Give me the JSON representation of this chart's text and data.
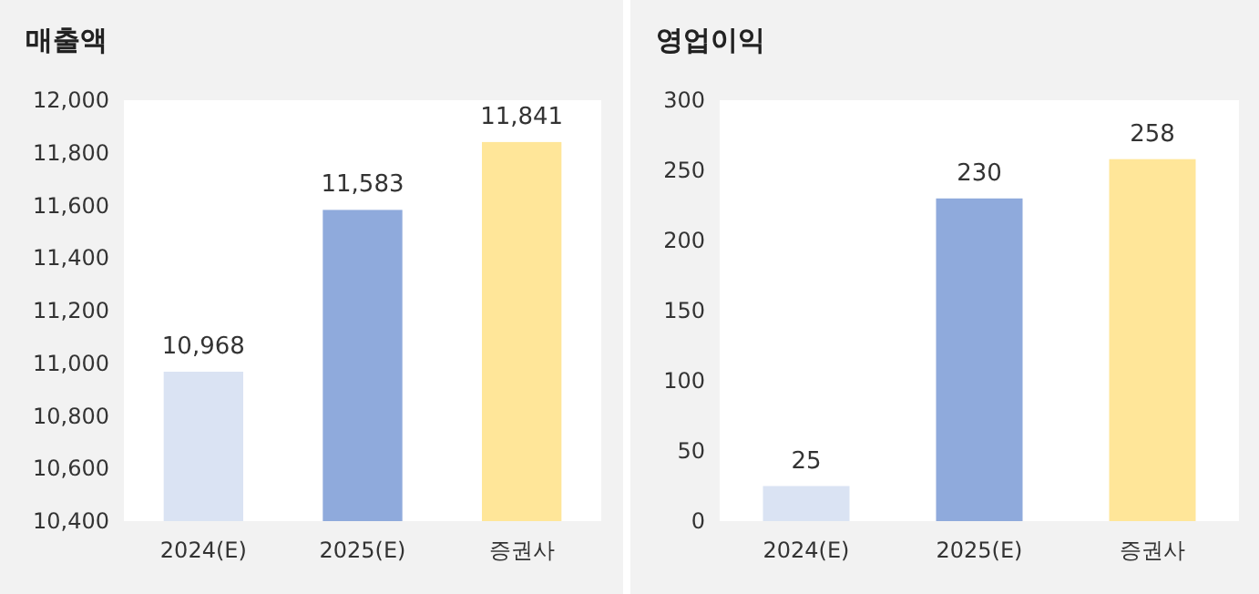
{
  "chart_data": [
    {
      "type": "bar",
      "title": "매출액",
      "categories": [
        "2024(E)",
        "2025(E)",
        "증권사"
      ],
      "values": [
        10968,
        11583,
        11841
      ],
      "colors": [
        "#dae3f3",
        "#8faadc",
        "#ffe699"
      ],
      "ylim": [
        10400,
        12000
      ],
      "yticks": [
        {
          "value": 10400,
          "label": "10,400"
        },
        {
          "value": 10600,
          "label": "10,600"
        },
        {
          "value": 10800,
          "label": "10,800"
        },
        {
          "value": 11000,
          "label": "11,000"
        },
        {
          "value": 11200,
          "label": "11,200"
        },
        {
          "value": 11400,
          "label": "11,400"
        },
        {
          "value": 11600,
          "label": "11,600"
        },
        {
          "value": 11800,
          "label": "11,800"
        },
        {
          "value": 12000,
          "label": "12,000"
        }
      ],
      "value_labels": [
        "10,968",
        "11,583",
        "11,841"
      ]
    },
    {
      "type": "bar",
      "title": "영업이익",
      "categories": [
        "2024(E)",
        "2025(E)",
        "증권사"
      ],
      "values": [
        25,
        230,
        258
      ],
      "colors": [
        "#dae3f3",
        "#8faadc",
        "#ffe699"
      ],
      "ylim": [
        0,
        300
      ],
      "yticks": [
        0,
        50,
        100,
        150,
        200,
        250,
        300
      ],
      "data_labels": true
    }
  ]
}
